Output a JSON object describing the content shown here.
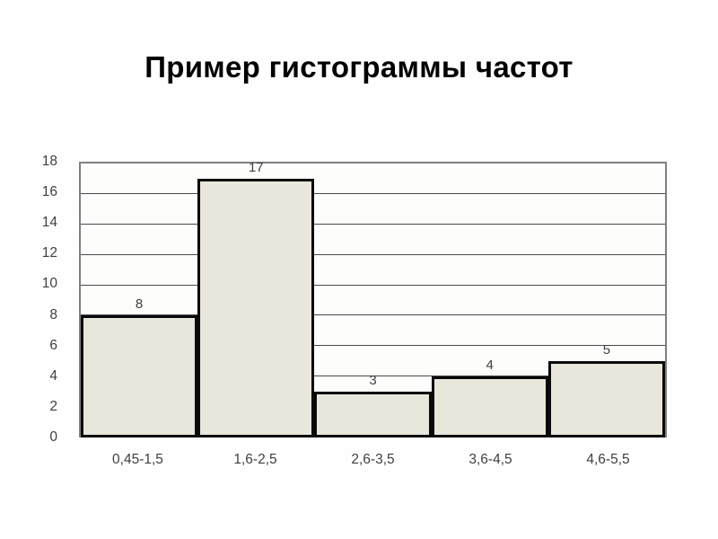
{
  "page": {
    "background": "#fefefe"
  },
  "title": "Пример гистограммы частот",
  "chart_data": {
    "type": "bar",
    "variant": "histogram",
    "title": "Пример гистограммы частот",
    "categories": [
      "0,45-1,5",
      "1,6-2,5",
      "2,6-3,5",
      "3,6-4,5",
      "4,6-5,5"
    ],
    "values": [
      8,
      17,
      3,
      4,
      5
    ],
    "data_labels": [
      8,
      17,
      3,
      4,
      5
    ],
    "xlabel": "",
    "ylabel": "",
    "ylim": [
      0,
      18
    ],
    "yticks": [
      0,
      2,
      4,
      6,
      8,
      10,
      12,
      14,
      16,
      18
    ],
    "grid": "horizontal",
    "legend": "none",
    "bars_touching": true,
    "colors": {
      "bar_fill": "#E9E6DB",
      "bar_border": "#0A0A0A",
      "gridline": "#4A4A4A",
      "plot_border": "#7F7F7F",
      "axis_text": "#3F3F3F",
      "title_text": "#000000"
    }
  }
}
